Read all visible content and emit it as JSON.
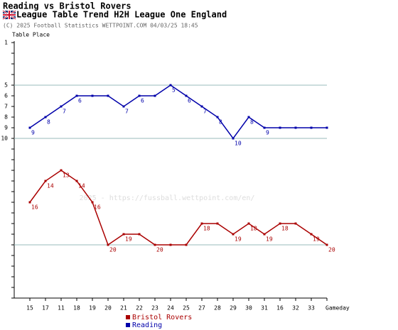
{
  "chart_data": {
    "type": "line",
    "title": "Reading vs Bristol Rovers",
    "subtitle": "League Table Trend H2H League One England",
    "copyright": "(C) 2025 Football Statistics WETTPOINT.COM 04/03/25 18:45",
    "watermark": "2025 - https://fussball.wettpoint.com/en/",
    "y_label": "Table Place",
    "x_label": "Gameday",
    "categories": [
      "15",
      "17",
      "11",
      "18",
      "19",
      "20",
      "21",
      "22",
      "23",
      "24",
      "25",
      "27",
      "28",
      "29",
      "30",
      "31",
      "16",
      "32",
      "33",
      null
    ],
    "series": [
      {
        "name": "Reading",
        "color": "#0000aa",
        "values": [
          9,
          8,
          7,
          6,
          6,
          6,
          7,
          6,
          6,
          5,
          6,
          7,
          8,
          10,
          8,
          9,
          9,
          9,
          9,
          9
        ],
        "value_labels": [
          "9",
          "8",
          "7",
          "6",
          null,
          null,
          "7",
          "6",
          null,
          "5",
          "6",
          "7",
          "8",
          "10",
          "8",
          "9",
          null,
          null,
          null,
          null
        ]
      },
      {
        "name": "Bristol Rovers",
        "color": "#aa0000",
        "values": [
          16,
          14,
          13,
          14,
          16,
          20,
          19,
          19,
          20,
          20,
          20,
          18,
          18,
          19,
          18,
          19,
          18,
          18,
          19,
          20
        ],
        "value_labels": [
          "16",
          "14",
          "13",
          "14",
          "16",
          "20",
          "19",
          null,
          "20",
          null,
          null,
          "18",
          null,
          "19",
          "18",
          "19",
          "18",
          null,
          "19",
          "20"
        ]
      }
    ],
    "legend_order": [
      1,
      0
    ],
    "ylim": [
      1,
      25
    ],
    "y_inverted": true,
    "yticks": [
      1,
      5,
      6,
      7,
      8,
      9,
      10
    ],
    "minor_yticks": [
      2,
      3,
      4,
      11,
      12,
      13,
      14,
      15,
      16,
      17,
      18,
      19,
      20,
      21,
      22,
      23,
      24,
      25
    ],
    "grid_lines": [
      5,
      10,
      20
    ]
  }
}
